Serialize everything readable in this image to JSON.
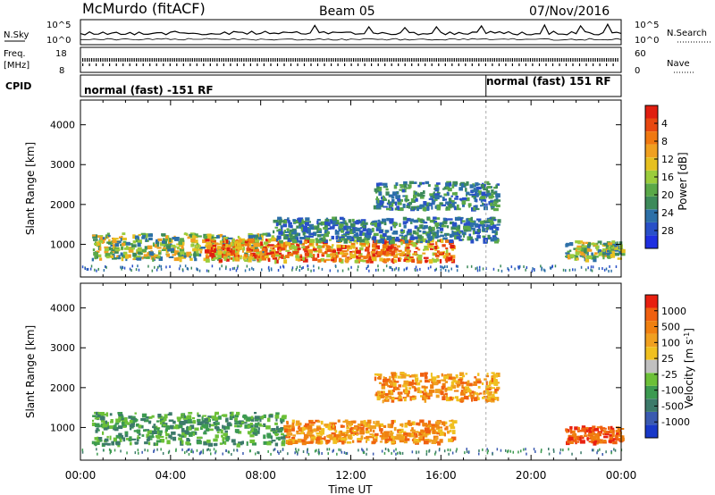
{
  "header": {
    "station": "McMurdo (fitACF)",
    "beam": "Beam 05",
    "date": "07/Nov/2016"
  },
  "noise_panel": {
    "left_label": "N.Sky",
    "right_label": "N.Search",
    "left_ticks": [
      "10^5",
      "10^0"
    ],
    "right_ticks": [
      "10^5",
      "10^0"
    ]
  },
  "freq_panel": {
    "left_label_top": "Freq.",
    "left_label_bottom": "[MHz]",
    "left_ticks": [
      "18",
      "8"
    ],
    "right_label": "Nave",
    "right_ticks": [
      "60",
      "0"
    ]
  },
  "cpid_panel": {
    "label": "CPID",
    "segments": [
      {
        "text": "normal (fast) -151 RF",
        "start_hour": 0
      },
      {
        "text": "normal (fast) 151 RF",
        "start_hour": 18
      }
    ]
  },
  "chart_data": [
    {
      "type": "heatmap",
      "title": "Power",
      "xlabel": "Time UT",
      "ylabel": "Slant Range [km]",
      "x_tick_labels": [
        "00:00",
        "04:00",
        "08:00",
        "12:00",
        "16:00",
        "20:00",
        "00:00"
      ],
      "xlim_hours": [
        0,
        24
      ],
      "ylim": [
        180,
        4620
      ],
      "y_ticks": [
        1000,
        2000,
        3000,
        4000
      ],
      "colorbar": {
        "label": "Power [dB]",
        "ticks": [
          "4",
          "8",
          "12",
          "16",
          "20",
          "24",
          "28"
        ],
        "colors": [
          "#1f2fe0",
          "#2950c8",
          "#2d70a8",
          "#3d8a5a",
          "#5aa848",
          "#9bcc3c",
          "#e6c020",
          "#f0a020",
          "#f07810",
          "#e84810",
          "#e01e10"
        ]
      },
      "echo_regions": [
        {
          "x": [
            0.5,
            8.5
          ],
          "y": [
            650,
            1300
          ],
          "level": "medium"
        },
        {
          "x": [
            5.5,
            16.5
          ],
          "y": [
            600,
            1150
          ],
          "level": "high"
        },
        {
          "x": [
            8.5,
            18.5
          ],
          "y": [
            1100,
            1700
          ],
          "level": "low"
        },
        {
          "x": [
            13.0,
            18.5
          ],
          "y": [
            1900,
            2600
          ],
          "level": "low"
        },
        {
          "x": [
            21.5,
            24.0
          ],
          "y": [
            650,
            1100
          ],
          "level": "medium"
        }
      ]
    },
    {
      "type": "heatmap",
      "title": "Velocity",
      "xlabel": "Time UT",
      "ylabel": "Slant Range [km]",
      "x_tick_labels": [
        "00:00",
        "04:00",
        "08:00",
        "12:00",
        "16:00",
        "20:00",
        "00:00"
      ],
      "xlim_hours": [
        0,
        24
      ],
      "ylim": [
        180,
        4620
      ],
      "y_ticks": [
        1000,
        2000,
        3000,
        4000
      ],
      "colorbar": {
        "label": "Velocity [m s^-1]",
        "ticks": [
          "1000",
          "500",
          "100",
          "25",
          "-25",
          "-100",
          "-500",
          "-1000"
        ],
        "colors": [
          "#1838c8",
          "#3a5ab0",
          "#3c7a6a",
          "#3c9a50",
          "#6cc038",
          "#c0c0c0",
          "#f0c020",
          "#f0a020",
          "#f08010",
          "#f06010",
          "#e82010"
        ]
      },
      "echo_regions": [
        {
          "x": [
            0.5,
            9.0
          ],
          "y": [
            600,
            1400
          ],
          "level": "positive"
        },
        {
          "x": [
            9.0,
            16.5
          ],
          "y": [
            650,
            1200
          ],
          "level": "negative"
        },
        {
          "x": [
            13.0,
            18.5
          ],
          "y": [
            1700,
            2400
          ],
          "level": "negative"
        },
        {
          "x": [
            21.5,
            24.0
          ],
          "y": [
            650,
            1050
          ],
          "level": "strong-negative"
        }
      ]
    }
  ]
}
